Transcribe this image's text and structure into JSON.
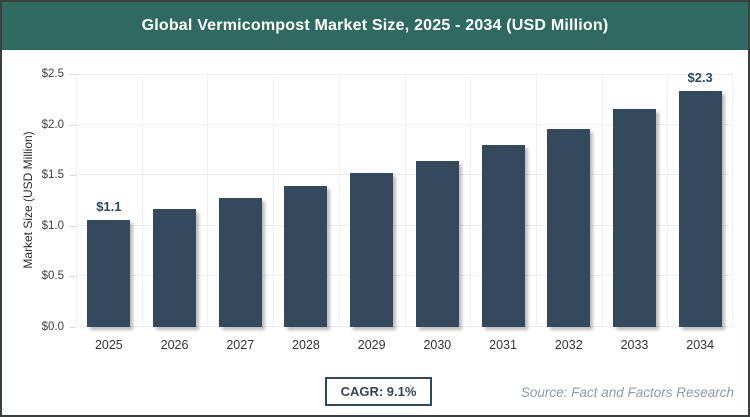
{
  "header": {
    "title": "Global Vermicompost Market Size, 2025 - 2034 (USD Million)"
  },
  "chart_data": {
    "type": "bar",
    "title": "Global Vermicompost Market Size, 2025 - 2034 (USD Million)",
    "categories": [
      "2025",
      "2026",
      "2027",
      "2028",
      "2029",
      "2030",
      "2031",
      "2032",
      "2033",
      "2034"
    ],
    "values": [
      1.06,
      1.17,
      1.27,
      1.39,
      1.52,
      1.64,
      1.8,
      1.96,
      2.15,
      2.33
    ],
    "point_labels": [
      "$1.1",
      "",
      "",
      "",
      "",
      "",
      "",
      "",
      "",
      "$2.3"
    ],
    "xlabel": "",
    "ylabel": "Market Size (USD Million)",
    "ylim": [
      0,
      2.5
    ],
    "yticks": [
      "$0.0",
      "$0.5",
      "$1.0",
      "$1.5",
      "$2.0",
      "$2.5"
    ],
    "grid": true,
    "legend_position": "none",
    "bar_color": "#35495e"
  },
  "footer": {
    "cagr_label": "CAGR: 9.1%",
    "source": "Source: Fact and Factors Research"
  },
  "colors": {
    "header_bg": "#2e6a60",
    "bar": "#35495e",
    "point_label": "#2e4a62",
    "cagr_border": "#2e4a62",
    "grid": "#ececec",
    "source_text": "#8d9ba4",
    "frame_border": "#3a403e"
  }
}
